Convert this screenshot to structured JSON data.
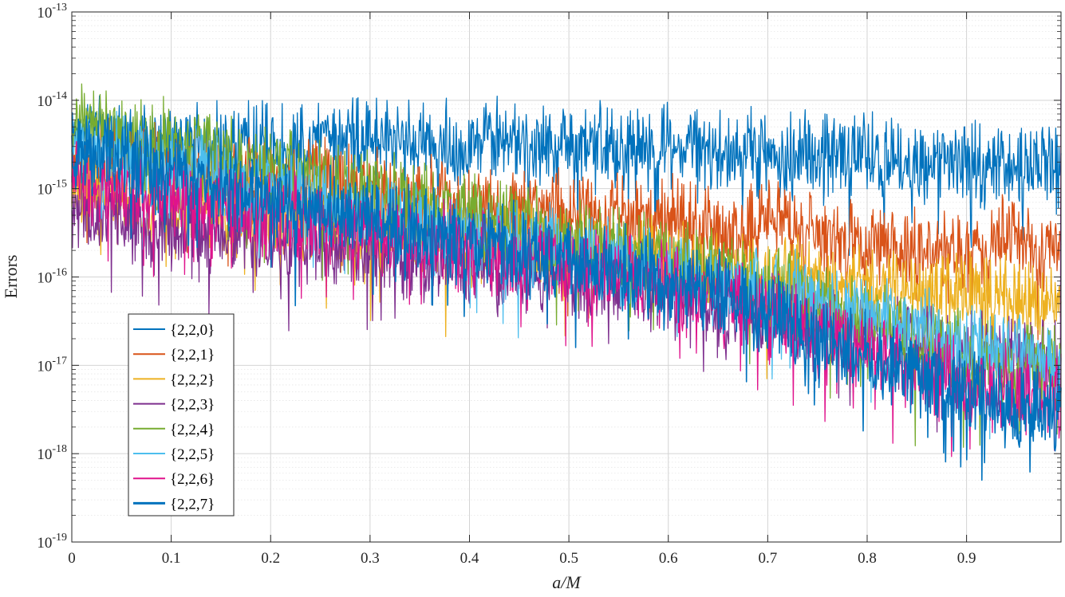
{
  "chart_data": {
    "type": "line",
    "title": "",
    "xlabel": "a/M",
    "ylabel": "Errors",
    "xlim": [
      0,
      0.995
    ],
    "ylim": [
      1e-19,
      1e-13
    ],
    "yscale": "log",
    "grid": true,
    "minor_grid": true,
    "legend_position": "lower-left",
    "x_ticks": [
      "0",
      "0.1",
      "0.2",
      "0.3",
      "0.4",
      "0.5",
      "0.6",
      "0.7",
      "0.8",
      "0.9"
    ],
    "y_tick_base": "10",
    "y_tick_exponents": [
      "-19",
      "-18",
      "-17",
      "-16",
      "-15",
      "-14",
      "-13"
    ],
    "x_sample_step": 0.025,
    "series": [
      {
        "name": "{2,2,0}",
        "color": "#0072BD",
        "emphasis": false,
        "trend_log10": [
          -14.4,
          -14.4,
          -14.5,
          -14.5,
          -14.5,
          -14.5,
          -14.5,
          -14.5,
          -14.5,
          -14.5,
          -14.4,
          -14.4,
          -14.4,
          -14.5,
          -14.5,
          -14.5,
          -14.5,
          -14.4,
          -14.5,
          -14.5,
          -14.5,
          -14.5,
          -14.5,
          -14.5,
          -14.5,
          -14.5,
          -14.6,
          -14.6,
          -14.6,
          -14.6,
          -14.6,
          -14.6,
          -14.6,
          -14.7,
          -14.7,
          -14.7,
          -14.7,
          -14.7,
          -14.8,
          -14.7
        ]
      },
      {
        "name": "{2,2,1}",
        "color": "#D95319",
        "emphasis": false,
        "trend_log10": [
          -14.8,
          -14.7,
          -14.7,
          -14.7,
          -14.8,
          -14.8,
          -14.9,
          -14.9,
          -14.9,
          -14.9,
          -14.9,
          -15.0,
          -15.0,
          -15.1,
          -15.1,
          -15.1,
          -15.2,
          -15.2,
          -15.2,
          -15.2,
          -15.3,
          -15.3,
          -15.3,
          -15.4,
          -15.3,
          -15.4,
          -15.5,
          -15.5,
          -15.4,
          -15.4,
          -15.5,
          -15.6,
          -15.6,
          -15.6,
          -15.7,
          -15.7,
          -15.7,
          -15.6,
          -15.6,
          -15.7
        ]
      },
      {
        "name": "{2,2,2}",
        "color": "#EDB120",
        "emphasis": false,
        "trend_log10": [
          -15.0,
          -15.1,
          -15.1,
          -15.2,
          -15.2,
          -15.2,
          -15.3,
          -15.3,
          -15.3,
          -15.4,
          -15.4,
          -15.4,
          -15.5,
          -15.5,
          -15.5,
          -15.5,
          -15.6,
          -15.6,
          -15.6,
          -15.7,
          -15.7,
          -15.7,
          -15.8,
          -15.8,
          -15.8,
          -15.9,
          -15.9,
          -15.9,
          -16.0,
          -16.0,
          -16.0,
          -16.1,
          -16.1,
          -16.1,
          -16.1,
          -16.2,
          -16.2,
          -16.2,
          -16.3,
          -16.3
        ]
      },
      {
        "name": "{2,2,3}",
        "color": "#7E2F8E",
        "emphasis": false,
        "trend_log10": [
          -15.2,
          -15.3,
          -15.3,
          -15.4,
          -15.4,
          -15.5,
          -15.5,
          -15.5,
          -15.6,
          -15.6,
          -15.6,
          -15.7,
          -15.7,
          -15.7,
          -15.8,
          -15.8,
          -15.9,
          -15.9,
          -15.9,
          -16.0,
          -16.0,
          -16.1,
          -16.1,
          -16.1,
          -16.2,
          -16.2,
          -16.3,
          -16.3,
          -16.4,
          -16.4,
          -16.5,
          -16.6,
          -16.6,
          -16.7,
          -16.7,
          -16.8,
          -16.8,
          -16.9,
          -16.9,
          -17.0
        ]
      },
      {
        "name": "{2,2,4}",
        "color": "#77AC30",
        "emphasis": false,
        "trend_log10": [
          -14.3,
          -14.3,
          -14.4,
          -14.5,
          -14.5,
          -14.6,
          -14.6,
          -14.7,
          -14.8,
          -14.8,
          -14.9,
          -15.0,
          -15.0,
          -15.1,
          -15.2,
          -15.2,
          -15.3,
          -15.4,
          -15.4,
          -15.5,
          -15.6,
          -15.6,
          -15.7,
          -15.8,
          -15.8,
          -15.9,
          -16.0,
          -16.0,
          -16.1,
          -16.2,
          -16.3,
          -16.4,
          -16.5,
          -16.6,
          -16.7,
          -16.8,
          -16.9,
          -17.0,
          -17.1,
          -17.0
        ]
      },
      {
        "name": "{2,2,5}",
        "color": "#4DBEEE",
        "emphasis": false,
        "trend_log10": [
          -14.5,
          -14.6,
          -14.6,
          -14.7,
          -14.8,
          -14.8,
          -14.9,
          -15.0,
          -15.0,
          -15.1,
          -15.2,
          -15.2,
          -15.3,
          -15.3,
          -15.4,
          -15.5,
          -15.5,
          -15.6,
          -15.6,
          -15.7,
          -15.7,
          -15.8,
          -15.8,
          -15.9,
          -15.9,
          -16.0,
          -16.1,
          -16.1,
          -16.2,
          -16.2,
          -16.3,
          -16.4,
          -16.4,
          -16.5,
          -16.6,
          -16.7,
          -16.8,
          -16.8,
          -16.9,
          -17.0
        ]
      },
      {
        "name": "{2,2,6}",
        "color": "#E0138C",
        "emphasis": false,
        "trend_log10": [
          -14.9,
          -14.9,
          -15.0,
          -15.0,
          -15.1,
          -15.1,
          -15.2,
          -15.2,
          -15.3,
          -15.3,
          -15.4,
          -15.4,
          -15.5,
          -15.5,
          -15.6,
          -15.6,
          -15.7,
          -15.7,
          -15.8,
          -15.8,
          -15.9,
          -15.9,
          -16.0,
          -16.0,
          -16.1,
          -16.2,
          -16.2,
          -16.3,
          -16.4,
          -16.5,
          -16.6,
          -16.7,
          -16.8,
          -16.9,
          -17.0,
          -17.1,
          -17.2,
          -17.2,
          -17.3,
          -17.3
        ]
      },
      {
        "name": "{2,2,7}",
        "color": "#0072BD",
        "emphasis": true,
        "trend_log10": [
          -14.6,
          -14.6,
          -14.7,
          -14.8,
          -14.8,
          -14.9,
          -15.0,
          -15.0,
          -15.1,
          -15.2,
          -15.2,
          -15.3,
          -15.3,
          -15.4,
          -15.5,
          -15.5,
          -15.6,
          -15.6,
          -15.7,
          -15.8,
          -15.8,
          -15.9,
          -15.9,
          -16.0,
          -16.1,
          -16.1,
          -16.2,
          -16.3,
          -16.4,
          -16.5,
          -16.7,
          -16.8,
          -16.9,
          -17.0,
          -17.1,
          -17.2,
          -17.3,
          -17.4,
          -17.5,
          -17.5
        ]
      }
    ]
  }
}
